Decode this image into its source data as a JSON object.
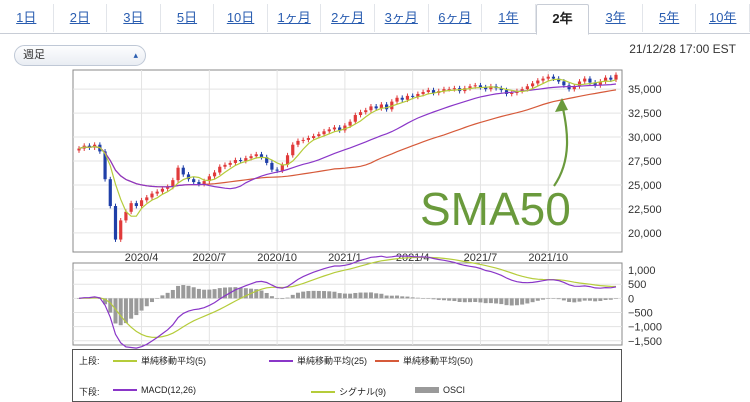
{
  "tabs": [
    {
      "label": "1日",
      "active": false
    },
    {
      "label": "2日",
      "active": false
    },
    {
      "label": "3日",
      "active": false
    },
    {
      "label": "5日",
      "active": false
    },
    {
      "label": "10日",
      "active": false
    },
    {
      "label": "1ヶ月",
      "active": false
    },
    {
      "label": "2ヶ月",
      "active": false
    },
    {
      "label": "3ヶ月",
      "active": false
    },
    {
      "label": "6ヶ月",
      "active": false
    },
    {
      "label": "1年",
      "active": false
    },
    {
      "label": "2年",
      "active": true
    },
    {
      "label": "3年",
      "active": false
    },
    {
      "label": "5年",
      "active": false
    },
    {
      "label": "10年",
      "active": false
    }
  ],
  "period_select": {
    "value": "週足"
  },
  "timestamp": "21/12/28 17:00 EST",
  "annotation": {
    "text": "SMA50",
    "color": "#6a9a3c"
  },
  "colors": {
    "up": "#e03a3a",
    "down": "#1f3fa8",
    "sma5": "#b5cc3a",
    "sma25": "#8a36c8",
    "sma50": "#d65a3a",
    "macd": "#8a36c8",
    "signal": "#b5cc3a",
    "osci": "#9a9a9a"
  },
  "legend": {
    "upper": {
      "head": "上段:",
      "items": [
        {
          "label": "単純移動平均(5)",
          "key": "sma5"
        },
        {
          "label": "単純移動平均(25)",
          "key": "sma25"
        },
        {
          "label": "単純移動平均(50)",
          "key": "sma50"
        }
      ]
    },
    "lower": {
      "head": "下段:",
      "items": [
        {
          "label": "MACD(12,26)",
          "key": "macd"
        },
        {
          "label": "シグナル(9)",
          "key": "signal"
        },
        {
          "label": "OSCI",
          "key": "osci"
        }
      ]
    }
  },
  "chart_data": [
    {
      "type": "candlestick",
      "title": "",
      "y_ticks": [
        "35,000",
        "32,500",
        "30,000",
        "27,500",
        "25,000",
        "22,500",
        "20,000"
      ],
      "y_tick_values": [
        35000,
        32500,
        30000,
        27500,
        25000,
        22500,
        20000
      ],
      "ylim": [
        18000,
        37000
      ],
      "x_ticks": [
        "2020/4",
        "2020/7",
        "2020/10",
        "2021/1",
        "2021/4",
        "2021/7",
        "2021/10"
      ],
      "x_tick_weeks": [
        12,
        25,
        38,
        51,
        64,
        77,
        90
      ],
      "weeks": 104,
      "grid": true,
      "close": [
        28800,
        29100,
        28900,
        29200,
        28500,
        25600,
        22800,
        19300,
        21300,
        22200,
        23100,
        22800,
        23400,
        23700,
        24100,
        24300,
        24600,
        24800,
        25500,
        26800,
        26100,
        25600,
        25300,
        25100,
        25400,
        25900,
        26300,
        26900,
        27100,
        27300,
        27600,
        27500,
        27800,
        28000,
        28200,
        27900,
        27300,
        26600,
        26500,
        27100,
        28100,
        29200,
        29600,
        29700,
        29900,
        30100,
        30300,
        30600,
        30800,
        31000,
        30700,
        31200,
        31600,
        32300,
        32600,
        32800,
        33200,
        33000,
        33400,
        32900,
        33700,
        34100,
        33900,
        34300,
        34200,
        34500,
        34700,
        34900,
        34600,
        34800,
        35000,
        35000,
        35100,
        34800,
        35100,
        35300,
        35400,
        35200,
        35000,
        35300,
        35100,
        34900,
        34500,
        34600,
        34800,
        35000,
        35300,
        35600,
        35900,
        36100,
        36300,
        36100,
        35800,
        35400,
        35000,
        35300,
        35800,
        36100,
        35700,
        35400,
        35800,
        36200,
        36000,
        36500
      ],
      "series": [
        {
          "name": "単純移動平均(5)",
          "key": "sma5"
        },
        {
          "name": "単純移動平均(25)",
          "key": "sma25"
        },
        {
          "name": "単純移動平均(50)",
          "key": "sma50"
        }
      ]
    },
    {
      "type": "line",
      "title": "",
      "y_ticks": [
        "1,000",
        "500",
        "0",
        "−500",
        "−1,000",
        "−1,500"
      ],
      "y_tick_values": [
        1000,
        500,
        0,
        -500,
        -1000,
        -1500
      ],
      "ylim": [
        -1650,
        1250
      ],
      "grid": true,
      "series": [
        {
          "name": "MACD(12,26)",
          "key": "macd"
        },
        {
          "name": "シグナル(9)",
          "key": "signal"
        },
        {
          "name": "OSCI",
          "key": "osci"
        }
      ]
    }
  ]
}
